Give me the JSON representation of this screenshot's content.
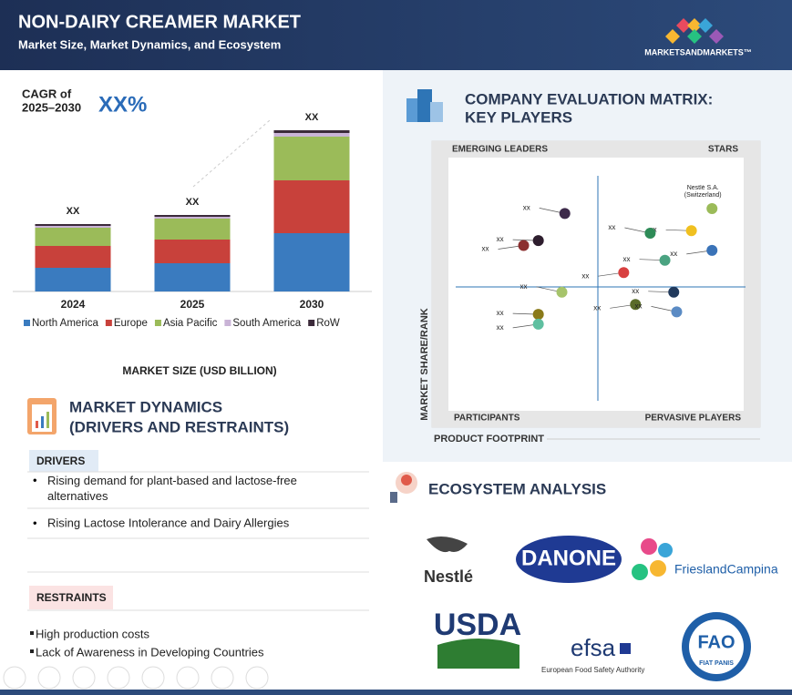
{
  "header": {
    "title": "NON-DAIRY CREAMER MARKET",
    "subtitle": "Market Size, Market Dynamics, and Ecosystem",
    "brand": "MARKETSANDMARKETS™"
  },
  "chart_data": [
    {
      "type": "bar",
      "stacked": true,
      "cagr_label": "CAGR of",
      "cagr_period": "2025–2030",
      "cagr_value": "XX%",
      "categories": [
        "2024",
        "2025",
        "2030"
      ],
      "series": [
        {
          "name": "North America",
          "color": "#3a7bbf",
          "values": [
            26,
            31,
            64
          ]
        },
        {
          "name": "Europe",
          "color": "#c8413b",
          "values": [
            24,
            26,
            58
          ]
        },
        {
          "name": "Asia Pacific",
          "color": "#9bbb59",
          "values": [
            20,
            23,
            48
          ]
        },
        {
          "name": "South America",
          "color": "#c9b3d6",
          "values": [
            2,
            2,
            4
          ]
        },
        {
          "name": "RoW",
          "color": "#3b2a3a",
          "values": [
            2,
            2,
            3
          ]
        }
      ],
      "total_labels": [
        "XX",
        "XX",
        "XX"
      ],
      "x_title": "MARKET SIZE (USD BILLION)"
    },
    {
      "type": "scatter",
      "title": "COMPANY EVALUATION MATRIX:",
      "title2": "KEY PLAYERS",
      "quadrants": [
        "EMERGING LEADERS",
        "STARS",
        "PARTICIPANTS",
        "PERVASIVE PLAYERS"
      ],
      "x_label": "PRODUCT FOOTPRINT",
      "y_label": "MARKET SHARE/RANK",
      "x": [
        38,
        29,
        24,
        88,
        81,
        88,
        67,
        72,
        58,
        37,
        75,
        62,
        76,
        29,
        29
      ],
      "values": [
        78,
        67,
        65,
        80,
        71,
        63,
        70,
        59,
        54,
        46,
        46,
        41,
        38,
        37,
        33
      ],
      "colors": [
        "#3d2a4a",
        "#2e1e2e",
        "#8b2f2f",
        "#9bbb59",
        "#f0c020",
        "#3a73b8",
        "#2e8b57",
        "#4aa381",
        "#d84040",
        "#a6c46b",
        "#213a5c",
        "#5a6b2a",
        "#5b8bc4",
        "#8a7a1a",
        "#5fbfa0"
      ],
      "point_labels": [
        "xx",
        "xx",
        "xx",
        "Nestlé S.A. (Switzerland)",
        "xx",
        "xx",
        "xx",
        "xx",
        "xx",
        "xx",
        "xx",
        "xx",
        "xx",
        "xx",
        "xx"
      ]
    }
  ],
  "dynamics": {
    "title": "MARKET DYNAMICS",
    "subtitle": "(DRIVERS AND RESTRAINTS)",
    "drivers": {
      "heading": "DRIVERS",
      "items": [
        "Rising demand for plant-based and lactose-free alternatives",
        "Rising Lactose Intolerance and Dairy Allergies"
      ]
    },
    "restraints": {
      "heading": "RESTRAINTS",
      "items": [
        "High production costs",
        "Lack of Awareness in Developing Countries"
      ]
    }
  },
  "ecosystem": {
    "title": "ECOSYSTEM ANALYSIS",
    "logos": [
      "Nestlé",
      "DANONE",
      "FrieslandCampina",
      "USDA",
      "efsa",
      "European Food Safety Authority",
      "FAO",
      "FIAT PANIS"
    ]
  }
}
